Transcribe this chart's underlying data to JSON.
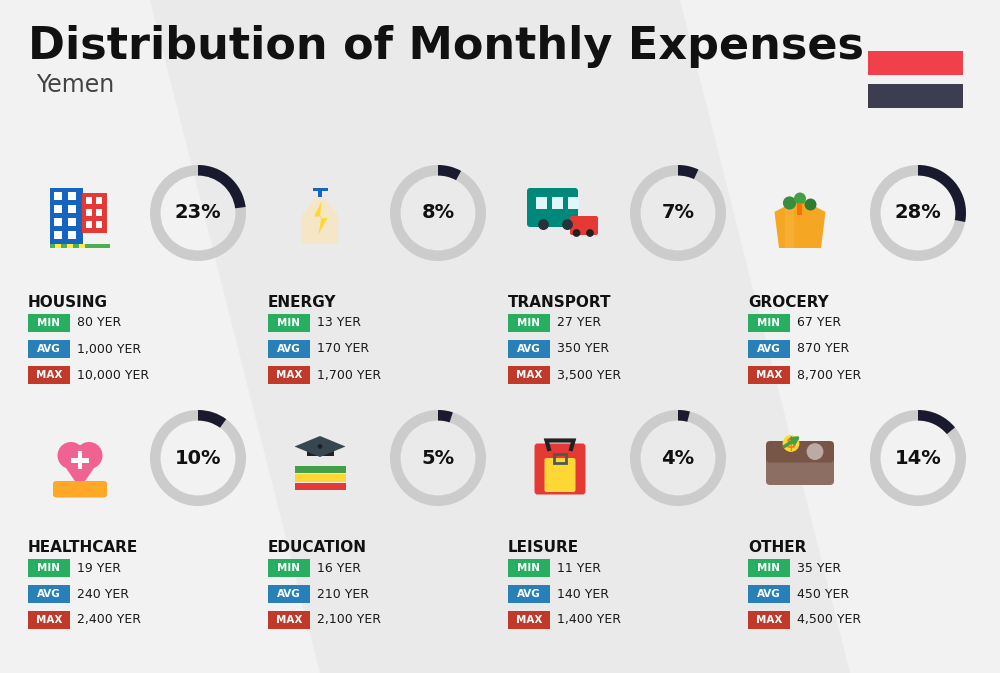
{
  "title": "Distribution of Monthly Expenses",
  "subtitle": "Yemen",
  "background_color": "#f2f2f2",
  "flag_colors": [
    "#f0404a",
    "#3d3d52"
  ],
  "categories": [
    {
      "name": "HOUSING",
      "pct": 23,
      "icon_type": "housing",
      "min_val": "80 YER",
      "avg_val": "1,000 YER",
      "max_val": "10,000 YER",
      "row": 0,
      "col": 0
    },
    {
      "name": "ENERGY",
      "pct": 8,
      "icon_type": "energy",
      "min_val": "13 YER",
      "avg_val": "170 YER",
      "max_val": "1,700 YER",
      "row": 0,
      "col": 1
    },
    {
      "name": "TRANSPORT",
      "pct": 7,
      "icon_type": "transport",
      "min_val": "27 YER",
      "avg_val": "350 YER",
      "max_val": "3,500 YER",
      "row": 0,
      "col": 2
    },
    {
      "name": "GROCERY",
      "pct": 28,
      "icon_type": "grocery",
      "min_val": "67 YER",
      "avg_val": "870 YER",
      "max_val": "8,700 YER",
      "row": 0,
      "col": 3
    },
    {
      "name": "HEALTHCARE",
      "pct": 10,
      "icon_type": "healthcare",
      "min_val": "19 YER",
      "avg_val": "240 YER",
      "max_val": "2,400 YER",
      "row": 1,
      "col": 0
    },
    {
      "name": "EDUCATION",
      "pct": 5,
      "icon_type": "education",
      "min_val": "16 YER",
      "avg_val": "210 YER",
      "max_val": "2,100 YER",
      "row": 1,
      "col": 1
    },
    {
      "name": "LEISURE",
      "pct": 4,
      "icon_type": "leisure",
      "min_val": "11 YER",
      "avg_val": "140 YER",
      "max_val": "1,400 YER",
      "row": 1,
      "col": 2
    },
    {
      "name": "OTHER",
      "pct": 14,
      "icon_type": "other",
      "min_val": "35 YER",
      "avg_val": "450 YER",
      "max_val": "4,500 YER",
      "row": 1,
      "col": 3
    }
  ],
  "min_color": "#27ae60",
  "avg_color": "#2980b9",
  "max_color": "#c0392b",
  "donut_filled_color": "#1a1a2e",
  "donut_empty_color": "#cccccc",
  "stripe_color": "#e5e5e5"
}
